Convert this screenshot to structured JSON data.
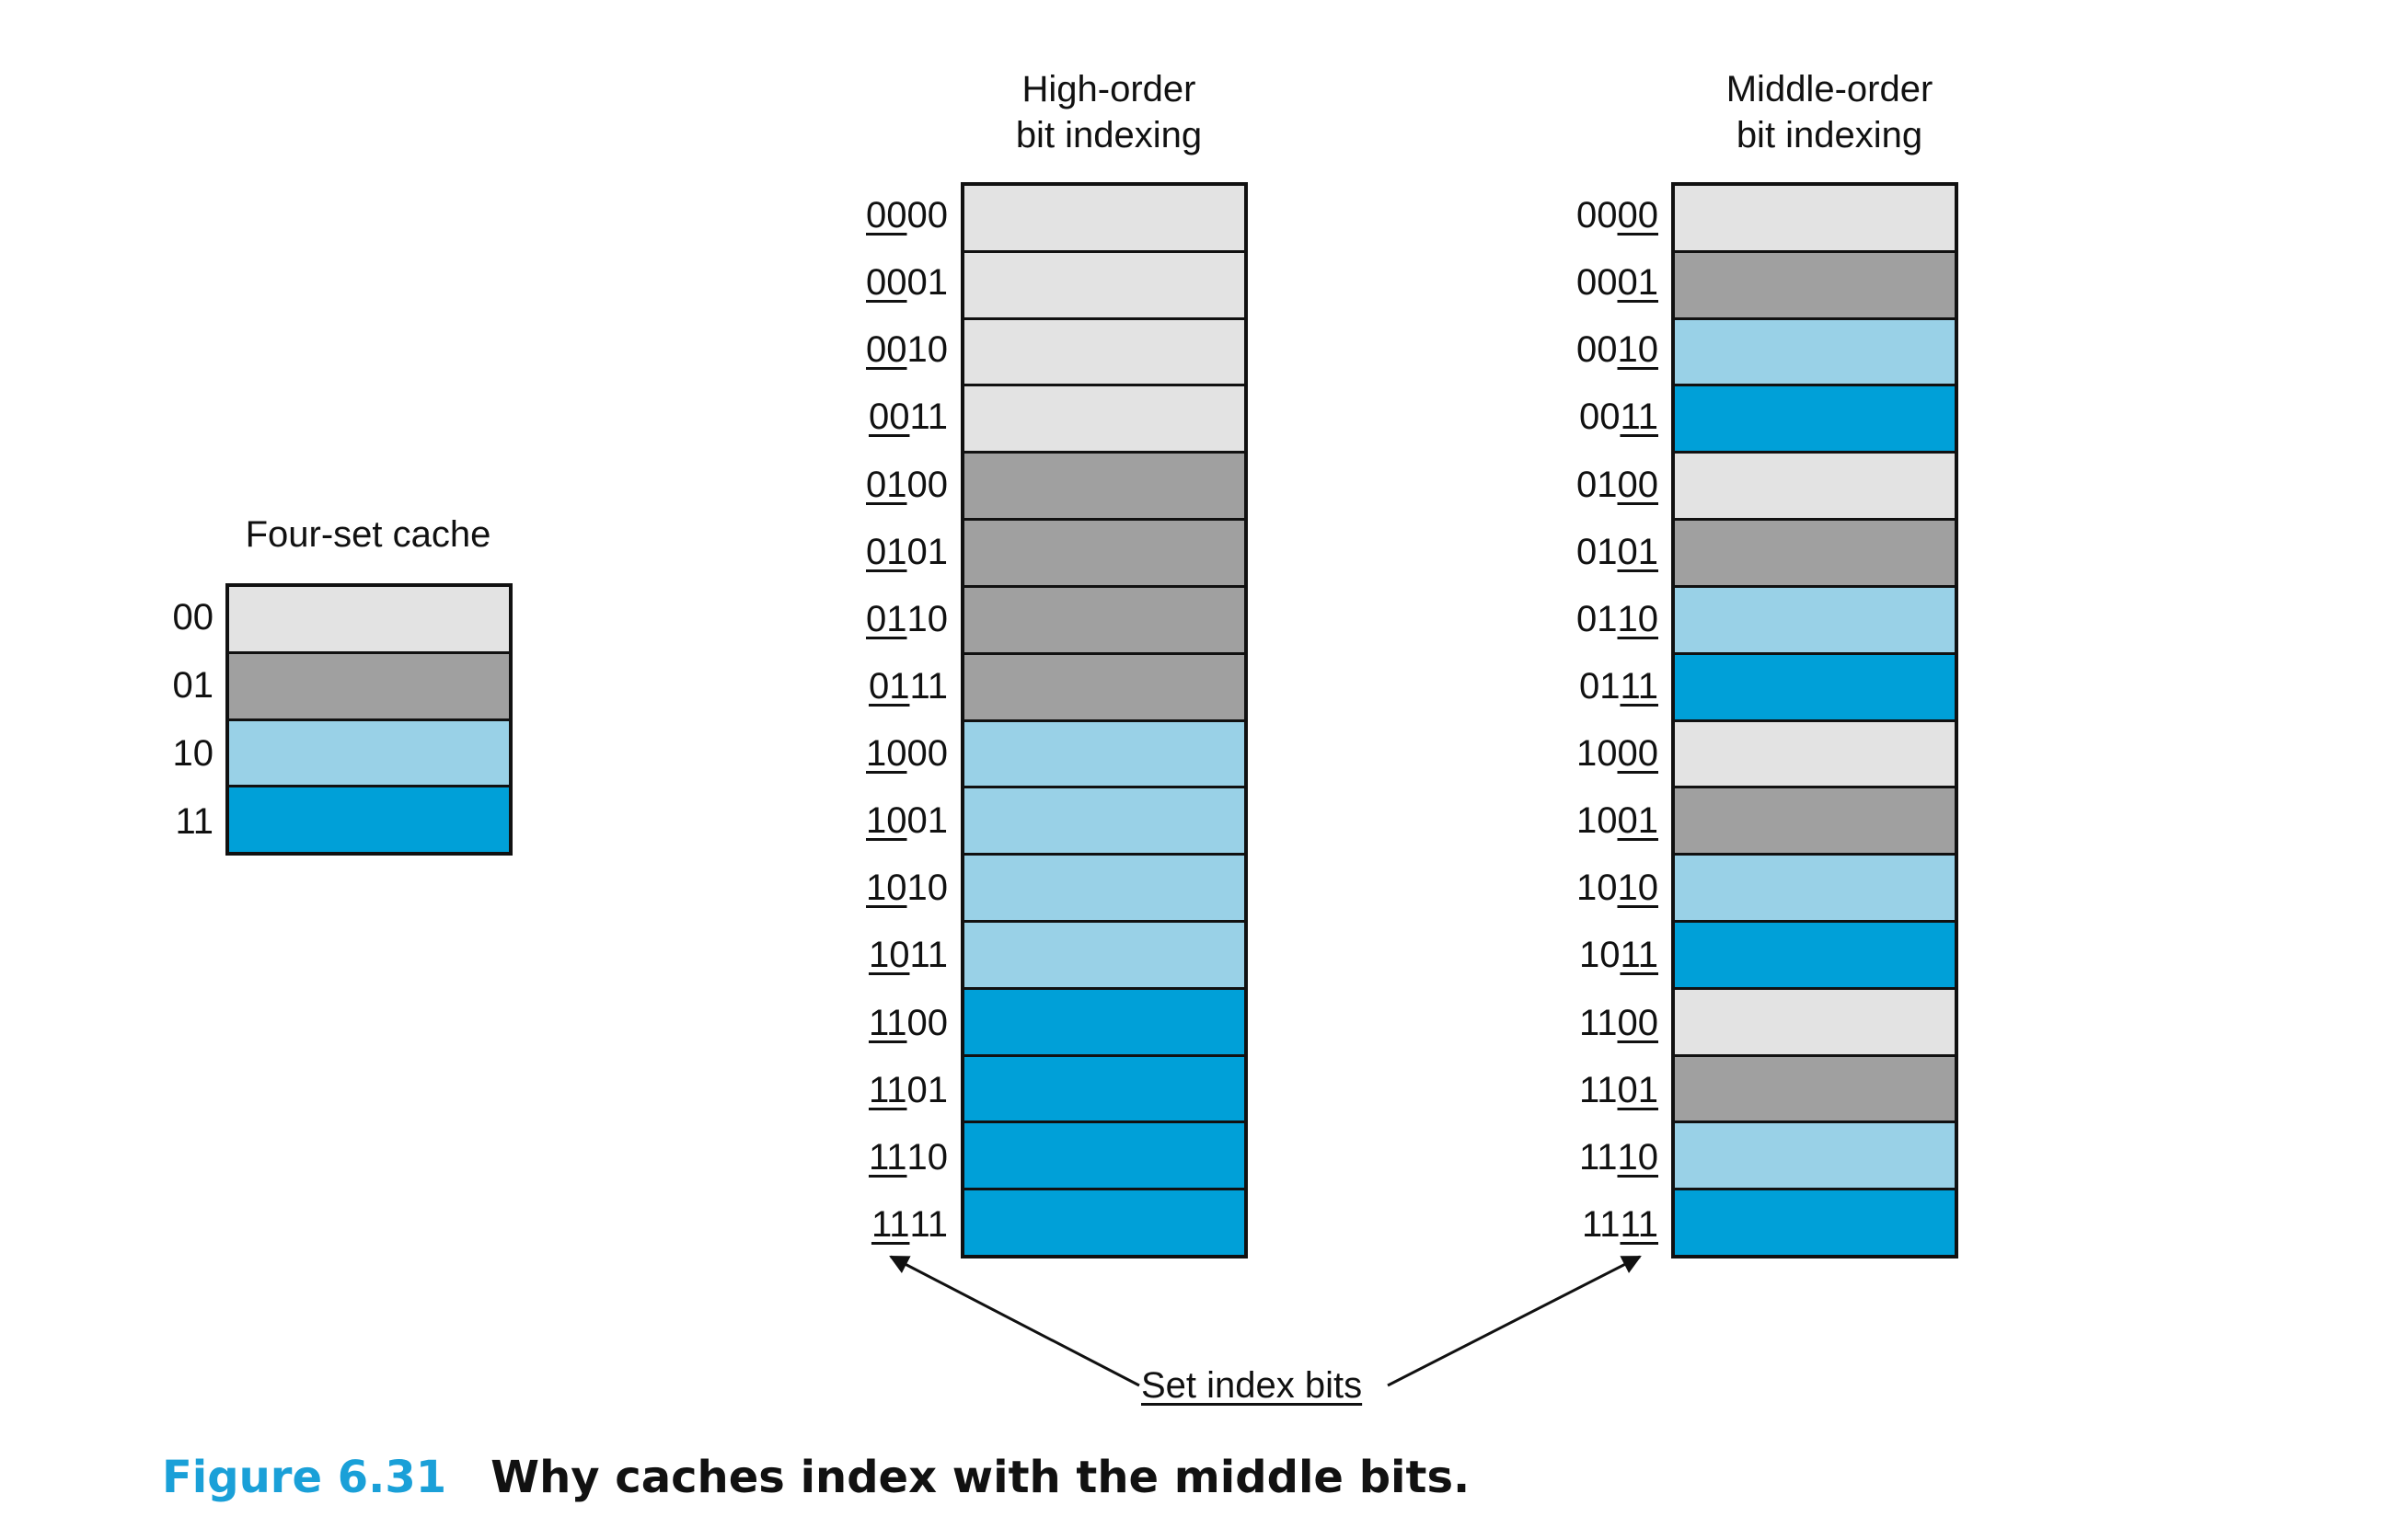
{
  "colors": {
    "set_00": "#e3e3e3",
    "set_01": "#a0a0a0",
    "set_10": "#99d1e7",
    "set_11": "#00a0d8",
    "caption_accent": "#1aa0d8"
  },
  "four_set_cache": {
    "title": "Four-set cache",
    "sets": [
      {
        "label": "00",
        "set": "00"
      },
      {
        "label": "01",
        "set": "01"
      },
      {
        "label": "10",
        "set": "10"
      },
      {
        "label": "11",
        "set": "11"
      }
    ]
  },
  "high_order": {
    "title_line1": "High-order",
    "title_line2": "bit indexing",
    "index_position": "high",
    "addresses": [
      "0000",
      "0001",
      "0010",
      "0011",
      "0100",
      "0101",
      "0110",
      "0111",
      "1000",
      "1001",
      "1010",
      "1011",
      "1100",
      "1101",
      "1110",
      "1111"
    ]
  },
  "middle_order": {
    "title_line1": "Middle-order",
    "title_line2": "bit indexing",
    "index_position": "low",
    "addresses": [
      "0000",
      "0001",
      "0010",
      "0011",
      "0100",
      "0101",
      "0110",
      "0111",
      "1000",
      "1001",
      "1010",
      "1011",
      "1100",
      "1101",
      "1110",
      "1111"
    ]
  },
  "callout": {
    "text": "Set index bits"
  },
  "caption": {
    "figure_number": "Figure 6.31",
    "text": "Why caches index with the middle bits."
  }
}
